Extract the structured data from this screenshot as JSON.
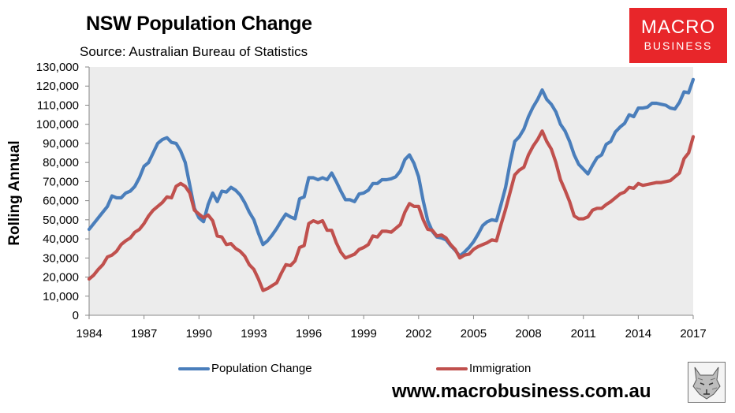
{
  "header": {
    "title": "NSW Population Change",
    "subtitle": "Source: Australian Bureau of Statistics"
  },
  "logo": {
    "line1": "MACRO",
    "line2": "BUSINESS",
    "color": "#e8262a"
  },
  "footer": {
    "url": "www.macrobusiness.com.au"
  },
  "chart_data": {
    "type": "line",
    "title": "NSW Population Change",
    "xlabel": "",
    "ylabel": "Rolling Annual",
    "xlim": [
      1984,
      2017
    ],
    "ylim": [
      0,
      130000
    ],
    "x_ticks": [
      "1984",
      "1987",
      "1990",
      "1993",
      "1996",
      "1999",
      "2002",
      "2005",
      "2008",
      "2011",
      "2014",
      "2017"
    ],
    "y_ticks": [
      "0",
      "10,000",
      "20,000",
      "30,000",
      "40,000",
      "50,000",
      "60,000",
      "70,000",
      "80,000",
      "90,000",
      "100,000",
      "110,000",
      "120,000",
      "130,000"
    ],
    "grid": false,
    "legend_position": "bottom",
    "series": [
      {
        "name": "Population Change",
        "color": "#4a7ebb",
        "points": [
          [
            1984.0,
            45000
          ],
          [
            1984.5,
            51000
          ],
          [
            1985.0,
            57000
          ],
          [
            1985.25,
            62500
          ],
          [
            1985.5,
            61500
          ],
          [
            1985.75,
            61500
          ],
          [
            1986.0,
            64000
          ],
          [
            1986.25,
            65000
          ],
          [
            1986.5,
            67500
          ],
          [
            1986.75,
            72000
          ],
          [
            1987.0,
            78000
          ],
          [
            1987.25,
            80000
          ],
          [
            1987.5,
            85000
          ],
          [
            1987.75,
            90000
          ],
          [
            1988.0,
            92000
          ],
          [
            1988.25,
            93000
          ],
          [
            1988.5,
            90500
          ],
          [
            1988.75,
            90000
          ],
          [
            1989.0,
            86000
          ],
          [
            1989.25,
            80000
          ],
          [
            1989.5,
            68000
          ],
          [
            1989.75,
            56000
          ],
          [
            1990.0,
            51000
          ],
          [
            1990.25,
            49000
          ],
          [
            1990.5,
            58000
          ],
          [
            1990.75,
            64000
          ],
          [
            1991.0,
            59500
          ],
          [
            1991.25,
            65000
          ],
          [
            1991.5,
            64500
          ],
          [
            1991.75,
            67000
          ],
          [
            1992.0,
            65500
          ],
          [
            1992.25,
            63000
          ],
          [
            1992.5,
            59000
          ],
          [
            1992.75,
            54000
          ],
          [
            1993.0,
            50000
          ],
          [
            1993.25,
            43000
          ],
          [
            1993.5,
            37000
          ],
          [
            1993.75,
            39000
          ],
          [
            1994.0,
            42000
          ],
          [
            1994.25,
            45500
          ],
          [
            1994.5,
            49500
          ],
          [
            1994.75,
            53000
          ],
          [
            1995.0,
            51500
          ],
          [
            1995.25,
            50500
          ],
          [
            1995.5,
            61000
          ],
          [
            1995.75,
            62000
          ],
          [
            1996.0,
            72000
          ],
          [
            1996.25,
            72000
          ],
          [
            1996.5,
            71000
          ],
          [
            1996.75,
            72000
          ],
          [
            1997.0,
            71000
          ],
          [
            1997.25,
            74500
          ],
          [
            1997.5,
            70000
          ],
          [
            1997.75,
            65000
          ],
          [
            1998.0,
            60500
          ],
          [
            1998.25,
            60500
          ],
          [
            1998.5,
            59500
          ],
          [
            1998.75,
            63500
          ],
          [
            1999.0,
            64000
          ],
          [
            1999.25,
            65500
          ],
          [
            1999.5,
            69000
          ],
          [
            1999.75,
            69000
          ],
          [
            2000.0,
            71000
          ],
          [
            2000.25,
            71000
          ],
          [
            2000.5,
            71500
          ],
          [
            2000.75,
            72500
          ],
          [
            2001.0,
            75500
          ],
          [
            2001.25,
            81500
          ],
          [
            2001.5,
            84000
          ],
          [
            2001.75,
            79500
          ],
          [
            2002.0,
            72500
          ],
          [
            2002.25,
            60000
          ],
          [
            2002.5,
            49500
          ],
          [
            2002.75,
            44000
          ],
          [
            2003.0,
            41000
          ],
          [
            2003.25,
            40500
          ],
          [
            2003.5,
            39500
          ],
          [
            2003.75,
            36500
          ],
          [
            2004.0,
            34000
          ],
          [
            2004.25,
            31000
          ],
          [
            2004.5,
            33000
          ],
          [
            2004.75,
            35500
          ],
          [
            2005.0,
            38500
          ],
          [
            2005.25,
            42500
          ],
          [
            2005.5,
            47000
          ],
          [
            2005.75,
            49000
          ],
          [
            2006.0,
            50000
          ],
          [
            2006.25,
            49500
          ],
          [
            2006.5,
            58000
          ],
          [
            2006.75,
            67000
          ],
          [
            2007.0,
            80000
          ],
          [
            2007.25,
            91000
          ],
          [
            2007.5,
            93500
          ],
          [
            2007.75,
            97500
          ],
          [
            2008.0,
            104000
          ],
          [
            2008.25,
            109000
          ],
          [
            2008.5,
            113000
          ],
          [
            2008.75,
            118000
          ],
          [
            2009.0,
            113000
          ],
          [
            2009.25,
            110500
          ],
          [
            2009.5,
            106500
          ],
          [
            2009.75,
            100000
          ],
          [
            2010.0,
            96500
          ],
          [
            2010.25,
            91000
          ],
          [
            2010.5,
            84000
          ],
          [
            2010.75,
            79000
          ],
          [
            2011.0,
            76500
          ],
          [
            2011.25,
            74000
          ],
          [
            2011.5,
            78500
          ],
          [
            2011.75,
            82500
          ],
          [
            2012.0,
            84000
          ],
          [
            2012.25,
            89500
          ],
          [
            2012.5,
            91000
          ],
          [
            2012.75,
            96000
          ],
          [
            2013.0,
            98500
          ],
          [
            2013.25,
            100500
          ],
          [
            2013.5,
            105000
          ],
          [
            2013.75,
            104000
          ],
          [
            2014.0,
            108500
          ],
          [
            2014.25,
            108500
          ],
          [
            2014.5,
            109000
          ],
          [
            2014.75,
            111000
          ],
          [
            2015.0,
            111000
          ],
          [
            2015.25,
            110500
          ],
          [
            2015.5,
            110000
          ],
          [
            2015.75,
            108500
          ],
          [
            2016.0,
            108000
          ],
          [
            2016.25,
            111500
          ],
          [
            2016.5,
            117000
          ],
          [
            2016.75,
            116500
          ],
          [
            2017.0,
            123500
          ]
        ]
      },
      {
        "name": "Immigration",
        "color": "#c0504d",
        "points": [
          [
            1984.0,
            19000
          ],
          [
            1984.25,
            21000
          ],
          [
            1984.5,
            24000
          ],
          [
            1984.75,
            26500
          ],
          [
            1985.0,
            30500
          ],
          [
            1985.25,
            31500
          ],
          [
            1985.5,
            33500
          ],
          [
            1985.75,
            37000
          ],
          [
            1986.0,
            39000
          ],
          [
            1986.25,
            40500
          ],
          [
            1986.5,
            43500
          ],
          [
            1986.75,
            45000
          ],
          [
            1987.0,
            48000
          ],
          [
            1987.25,
            52000
          ],
          [
            1987.5,
            55000
          ],
          [
            1987.75,
            57000
          ],
          [
            1988.0,
            59000
          ],
          [
            1988.25,
            62000
          ],
          [
            1988.5,
            61500
          ],
          [
            1988.75,
            67500
          ],
          [
            1989.0,
            69000
          ],
          [
            1989.25,
            67500
          ],
          [
            1989.5,
            64000
          ],
          [
            1989.75,
            55000
          ],
          [
            1990.0,
            53000
          ],
          [
            1990.25,
            51000
          ],
          [
            1990.5,
            52500
          ],
          [
            1990.75,
            49500
          ],
          [
            1991.0,
            41500
          ],
          [
            1991.25,
            41000
          ],
          [
            1991.5,
            37000
          ],
          [
            1991.75,
            37500
          ],
          [
            1992.0,
            35000
          ],
          [
            1992.25,
            33500
          ],
          [
            1992.5,
            31000
          ],
          [
            1992.75,
            26500
          ],
          [
            1993.0,
            24000
          ],
          [
            1993.25,
            19000
          ],
          [
            1993.5,
            13000
          ],
          [
            1993.75,
            14000
          ],
          [
            1994.0,
            15500
          ],
          [
            1994.25,
            17000
          ],
          [
            1994.5,
            22000
          ],
          [
            1994.75,
            26500
          ],
          [
            1995.0,
            26000
          ],
          [
            1995.25,
            28500
          ],
          [
            1995.5,
            35500
          ],
          [
            1995.75,
            36500
          ],
          [
            1996.0,
            48000
          ],
          [
            1996.25,
            49500
          ],
          [
            1996.5,
            48500
          ],
          [
            1996.75,
            49500
          ],
          [
            1997.0,
            44500
          ],
          [
            1997.25,
            44500
          ],
          [
            1997.5,
            38000
          ],
          [
            1997.75,
            33000
          ],
          [
            1998.0,
            30000
          ],
          [
            1998.25,
            31000
          ],
          [
            1998.5,
            32000
          ],
          [
            1998.75,
            34500
          ],
          [
            1999.0,
            35500
          ],
          [
            1999.25,
            37000
          ],
          [
            1999.5,
            41500
          ],
          [
            1999.75,
            41000
          ],
          [
            2000.0,
            44000
          ],
          [
            2000.25,
            44000
          ],
          [
            2000.5,
            43500
          ],
          [
            2000.75,
            45500
          ],
          [
            2001.0,
            47500
          ],
          [
            2001.25,
            54000
          ],
          [
            2001.5,
            58500
          ],
          [
            2001.75,
            57000
          ],
          [
            2002.0,
            57000
          ],
          [
            2002.25,
            50000
          ],
          [
            2002.5,
            45000
          ],
          [
            2002.75,
            44500
          ],
          [
            2003.0,
            41500
          ],
          [
            2003.25,
            42000
          ],
          [
            2003.5,
            40500
          ],
          [
            2003.75,
            37000
          ],
          [
            2004.0,
            34500
          ],
          [
            2004.25,
            30000
          ],
          [
            2004.5,
            31500
          ],
          [
            2004.75,
            32000
          ],
          [
            2005.0,
            34500
          ],
          [
            2005.25,
            36000
          ],
          [
            2005.5,
            37000
          ],
          [
            2005.75,
            38000
          ],
          [
            2006.0,
            39500
          ],
          [
            2006.25,
            39000
          ],
          [
            2006.5,
            47500
          ],
          [
            2006.75,
            55500
          ],
          [
            2007.0,
            64500
          ],
          [
            2007.25,
            73500
          ],
          [
            2007.5,
            76000
          ],
          [
            2007.75,
            77500
          ],
          [
            2008.0,
            84000
          ],
          [
            2008.25,
            88500
          ],
          [
            2008.5,
            92000
          ],
          [
            2008.75,
            96500
          ],
          [
            2009.0,
            91000
          ],
          [
            2009.25,
            87000
          ],
          [
            2009.5,
            80000
          ],
          [
            2009.75,
            71000
          ],
          [
            2010.0,
            65500
          ],
          [
            2010.25,
            59500
          ],
          [
            2010.5,
            52000
          ],
          [
            2010.75,
            50500
          ],
          [
            2011.0,
            50500
          ],
          [
            2011.25,
            51500
          ],
          [
            2011.5,
            55000
          ],
          [
            2011.75,
            56000
          ],
          [
            2012.0,
            56000
          ],
          [
            2012.25,
            58000
          ],
          [
            2012.5,
            59500
          ],
          [
            2012.75,
            61500
          ],
          [
            2013.0,
            63500
          ],
          [
            2013.25,
            64500
          ],
          [
            2013.5,
            67000
          ],
          [
            2013.75,
            66500
          ],
          [
            2014.0,
            69000
          ],
          [
            2014.25,
            68000
          ],
          [
            2014.5,
            68500
          ],
          [
            2014.75,
            69000
          ],
          [
            2015.0,
            69500
          ],
          [
            2015.25,
            69500
          ],
          [
            2015.5,
            70000
          ],
          [
            2015.75,
            70500
          ],
          [
            2016.0,
            72500
          ],
          [
            2016.25,
            74500
          ],
          [
            2016.5,
            82000
          ],
          [
            2016.75,
            85000
          ],
          [
            2017.0,
            93500
          ]
        ]
      }
    ]
  }
}
